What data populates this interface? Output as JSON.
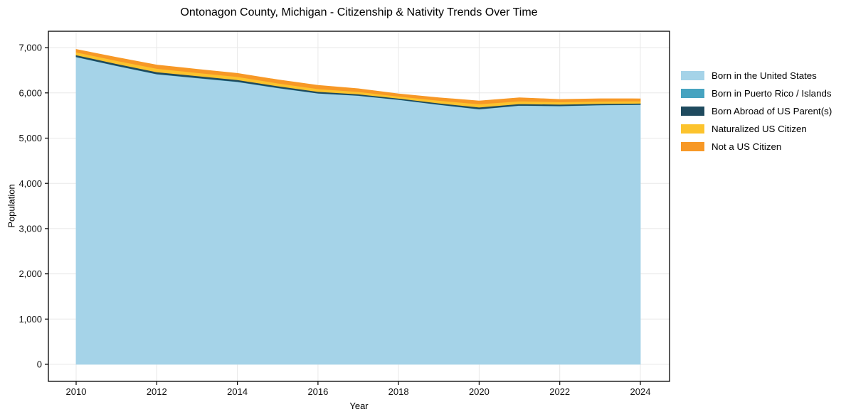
{
  "figure": {
    "title": "Ontonagon County, Michigan - Citizenship & Nativity Trends Over Time",
    "xlabel": "Year",
    "ylabel": "Population"
  },
  "chart_data": {
    "type": "area",
    "stacked": true,
    "title": "Ontonagon County, Michigan - Citizenship & Nativity Trends Over Time",
    "xlabel": "Year",
    "ylabel": "Population",
    "x": [
      2010,
      2011,
      2012,
      2013,
      2014,
      2015,
      2016,
      2017,
      2018,
      2019,
      2020,
      2021,
      2022,
      2023,
      2024
    ],
    "series": [
      {
        "name": "Born in the United States",
        "color": "#a5d3e8",
        "values": [
          6795,
          6600,
          6415,
          6330,
          6245,
          6110,
          5990,
          5940,
          5850,
          5740,
          5640,
          5720,
          5710,
          5730,
          5740
        ]
      },
      {
        "name": "Born in Puerto Rico / Islands",
        "color": "#46a3c0",
        "values": [
          4,
          4,
          4,
          4,
          4,
          4,
          4,
          4,
          4,
          4,
          4,
          4,
          4,
          4,
          4
        ]
      },
      {
        "name": "Born Abroad of US Parent(s)",
        "color": "#1f4a5e",
        "values": [
          40,
          41,
          42,
          42,
          42,
          38,
          35,
          30,
          25,
          30,
          39,
          35,
          31,
          28,
          25
        ]
      },
      {
        "name": "Naturalized US Citizen",
        "color": "#fcc32d",
        "values": [
          62,
          70,
          78,
          72,
          67,
          63,
          60,
          52,
          45,
          58,
          70,
          60,
          55,
          52,
          50
        ]
      },
      {
        "name": "Not a US Citizen",
        "color": "#f79826",
        "values": [
          62,
          70,
          78,
          75,
          73,
          75,
          77,
          66,
          55,
          62,
          70,
          75,
          55,
          58,
          50
        ]
      }
    ],
    "totals": [
      6963,
      6785,
      6617,
      6523,
      6431,
      6290,
      6166,
      6092,
      5979,
      5894,
      5823,
      5894,
      5855,
      5872,
      5869
    ],
    "xticks": [
      "2010",
      "2012",
      "2014",
      "2016",
      "2018",
      "2020",
      "2022",
      "2024"
    ],
    "xtick_values": [
      2010,
      2012,
      2014,
      2016,
      2018,
      2020,
      2022,
      2024
    ],
    "yticks": [
      0,
      1000,
      2000,
      3000,
      4000,
      5000,
      6000,
      7000
    ],
    "ytick_labels": [
      "0",
      "1,000",
      "2,000",
      "3,000",
      "4,000",
      "5,000",
      "6,000",
      "7,000"
    ],
    "xlim": [
      2009.3,
      2024.7
    ],
    "ylim": [
      -350,
      7310
    ],
    "grid": true,
    "grid_color": "#e8e8e8",
    "spine_color": "#000000",
    "background_color": "#ffffff",
    "legend_position": "right",
    "legend_frame": false
  }
}
